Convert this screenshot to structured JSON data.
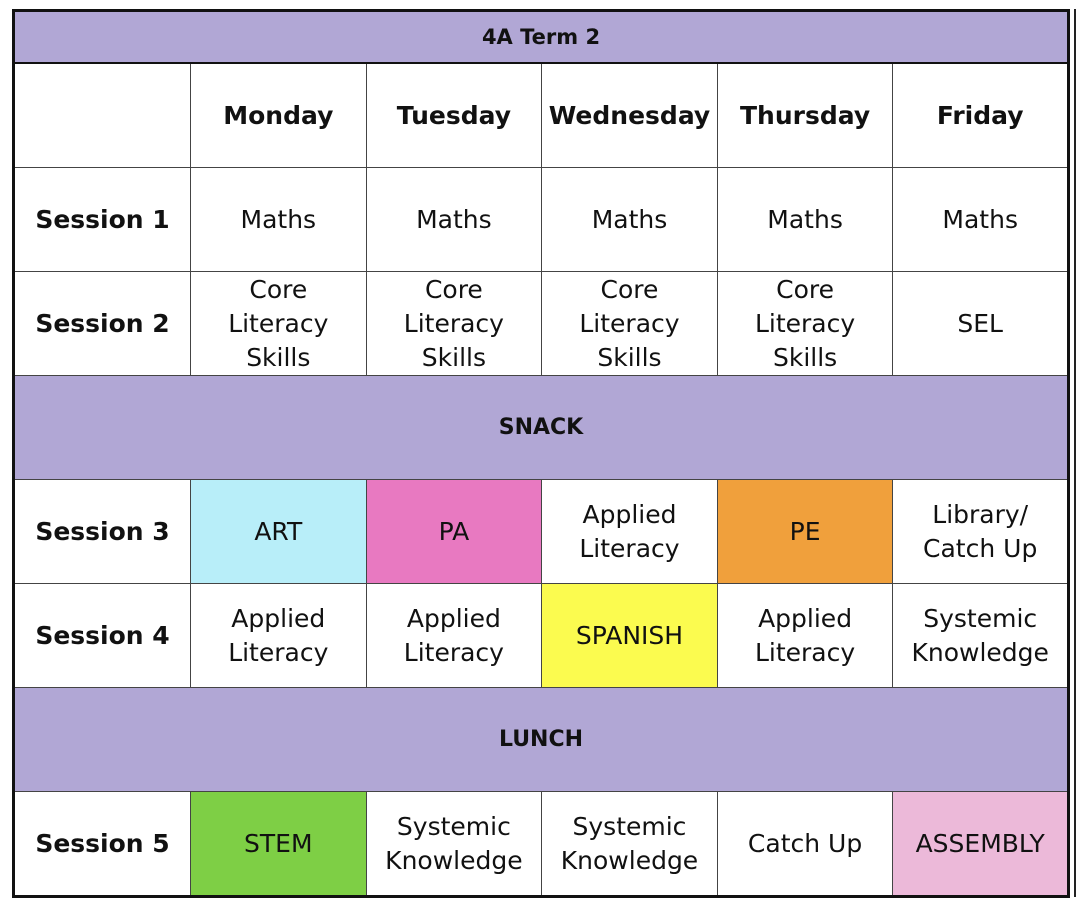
{
  "table": {
    "title": "4A Term 2",
    "days": [
      "Monday",
      "Tuesday",
      "Wednesday",
      "Thursday",
      "Friday"
    ],
    "break_color": "#b1a7d5",
    "rows": [
      {
        "label": "Session 1",
        "cells": [
          {
            "text": "Maths"
          },
          {
            "text": "Maths"
          },
          {
            "text": "Maths"
          },
          {
            "text": "Maths"
          },
          {
            "text": "Maths"
          }
        ]
      },
      {
        "label": "Session 2",
        "cells": [
          {
            "text": "Core Literacy Skills"
          },
          {
            "text": "Core Literacy Skills"
          },
          {
            "text": "Core Literacy Skills"
          },
          {
            "text": "Core Literacy Skills"
          },
          {
            "text": "SEL"
          }
        ]
      },
      {
        "break": "SNACK"
      },
      {
        "label": "Session 3",
        "cells": [
          {
            "text": "ART",
            "color": "#b8eef9"
          },
          {
            "text": "PA",
            "color": "#e879c1"
          },
          {
            "text": "Applied Literacy"
          },
          {
            "text": "PE",
            "color": "#f0a03c"
          },
          {
            "text": "Library/ Catch Up"
          }
        ]
      },
      {
        "label": "Session 4",
        "cells": [
          {
            "text": "Applied Literacy"
          },
          {
            "text": "Applied Literacy"
          },
          {
            "text": "SPANISH",
            "color": "#fbfb4f"
          },
          {
            "text": "Applied Literacy"
          },
          {
            "text": "Systemic Knowledge"
          }
        ]
      },
      {
        "break": "LUNCH"
      },
      {
        "label": "Session 5",
        "cells": [
          {
            "text": "STEM",
            "color": "#7ecf45"
          },
          {
            "text": "Systemic Knowledge"
          },
          {
            "text": "Systemic Knowledge"
          },
          {
            "text": "Catch Up"
          },
          {
            "text": "ASSEMBLY",
            "color": "#ecb9d9"
          }
        ]
      }
    ]
  }
}
